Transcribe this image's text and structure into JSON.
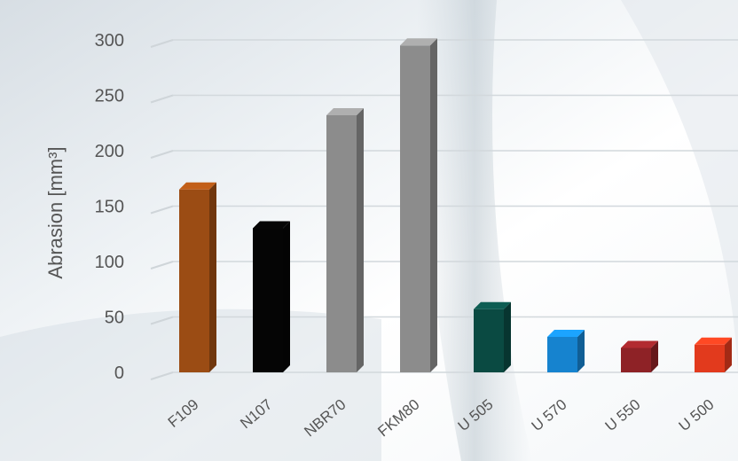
{
  "chart_data": {
    "type": "bar",
    "ylabel": "Abrasion [mm³]",
    "ylim": [
      0,
      300
    ],
    "yticks": [
      0,
      50,
      100,
      150,
      200,
      250,
      300
    ],
    "grid": true,
    "categories": [
      "F109",
      "N107",
      "NBR70",
      "FKM80",
      "U 505",
      "U 570",
      "U 550",
      "U 500"
    ],
    "values": [
      165,
      130,
      232,
      295,
      57,
      32,
      22,
      25
    ],
    "colors": [
      "#9b4c14",
      "#050505",
      "#8c8c8c",
      "#8c8c8c",
      "#0a4a42",
      "#1683cf",
      "#8e2226",
      "#e23a1d"
    ]
  }
}
